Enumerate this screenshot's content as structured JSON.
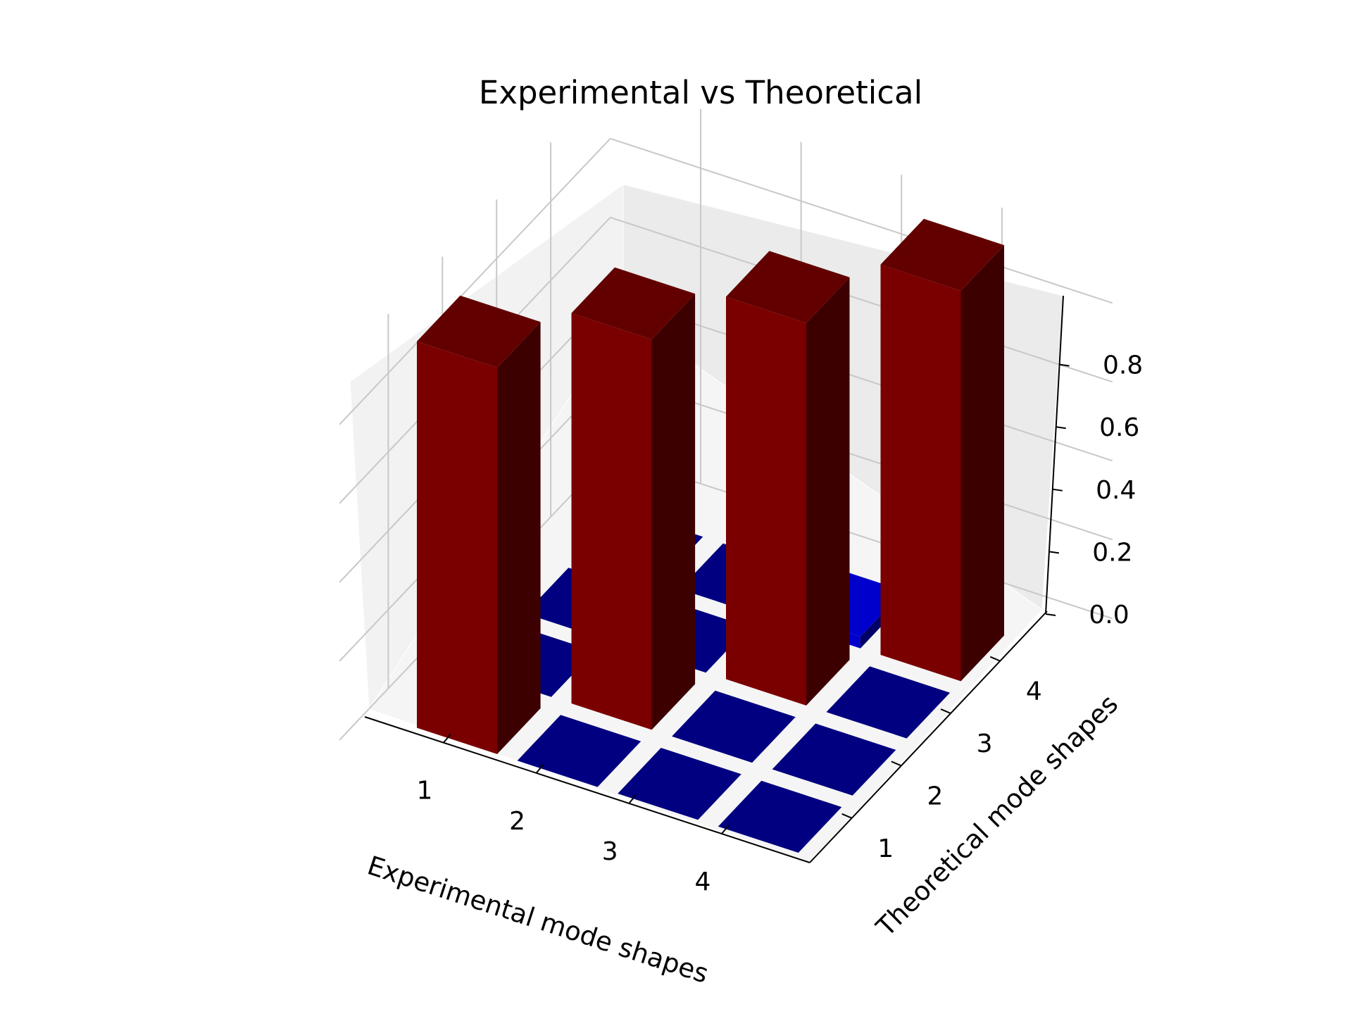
{
  "chart_data": {
    "type": "bar3d",
    "title": "Experimental vs Theoretical",
    "xlabel": "Experimental mode shapes",
    "ylabel": "Theoretical mode shapes",
    "zlabel": "",
    "x_categories": [
      "1",
      "2",
      "3",
      "4"
    ],
    "y_categories": [
      "1",
      "2",
      "3",
      "4"
    ],
    "z_ticks": [
      "0.0",
      "0.2",
      "0.4",
      "0.6",
      "0.8"
    ],
    "z_tick_values": [
      0.0,
      0.2,
      0.4,
      0.6,
      0.8
    ],
    "zlim": [
      0,
      1.0
    ],
    "grid": true,
    "colors": {
      "diagonal": "#7a0000",
      "off_diagonal": "#000080",
      "highlight": "#0000cc"
    },
    "matrix": [
      [
        0.98,
        0.0,
        0.0,
        0.0
      ],
      [
        0.0,
        0.99,
        0.0,
        0.0
      ],
      [
        0.0,
        0.0,
        0.97,
        0.0
      ],
      [
        0.0,
        0.0,
        0.03,
        0.99
      ]
    ]
  }
}
